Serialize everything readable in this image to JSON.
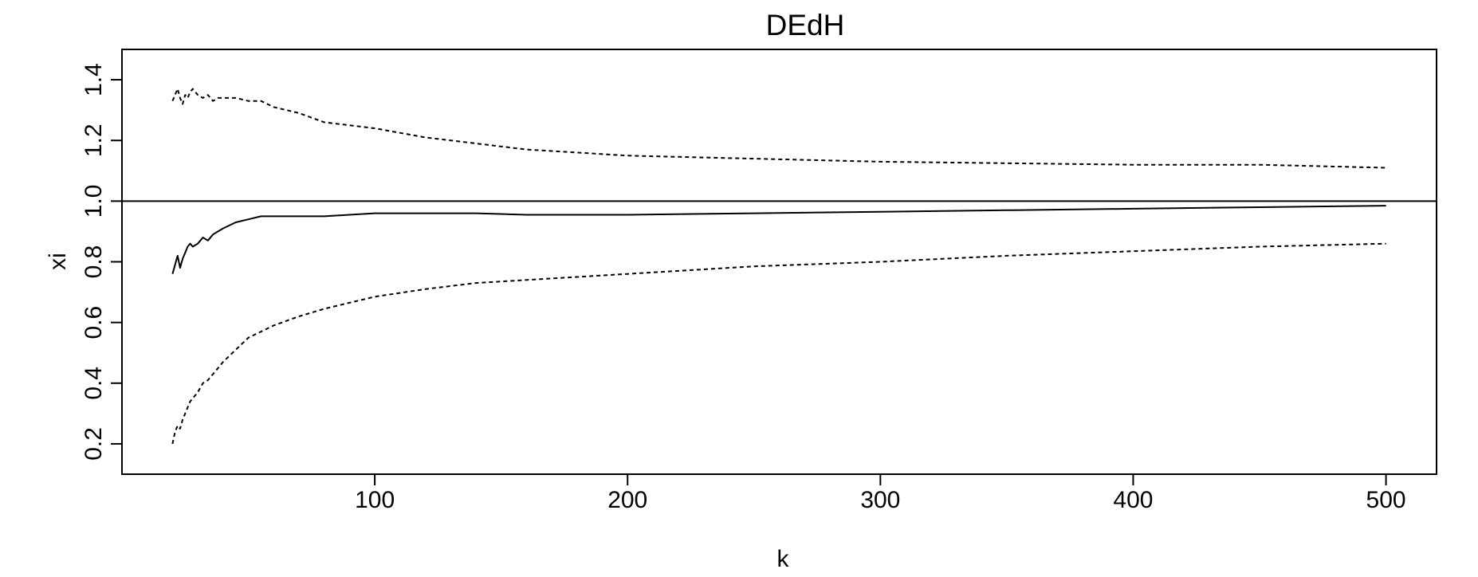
{
  "chart_data": {
    "type": "line",
    "title": "DEdH",
    "xlabel": "k",
    "ylabel": "xi",
    "xlim": [
      0,
      520
    ],
    "ylim": [
      0.1,
      1.5
    ],
    "x_ticks": [
      100,
      200,
      300,
      400,
      500
    ],
    "y_ticks": [
      0.2,
      0.4,
      0.6,
      0.8,
      1.0,
      1.2,
      1.4
    ],
    "x_tick_labels": [
      "100",
      "200",
      "300",
      "400",
      "500"
    ],
    "y_tick_labels": [
      "0.2",
      "0.4",
      "0.6",
      "0.8",
      "1.0",
      "1.2",
      "1.4"
    ],
    "grid": false,
    "reference_line": {
      "orientation": "horizontal",
      "y": 1.0,
      "style": "solid"
    },
    "series": [
      {
        "style": "dashed",
        "role": "upper-bound",
        "x": [
          20,
          21,
          22,
          23,
          24,
          25,
          26,
          27,
          28,
          30,
          32,
          34,
          36,
          38,
          40,
          45,
          50,
          55,
          60,
          70,
          80,
          90,
          100,
          120,
          140,
          160,
          180,
          200,
          250,
          300,
          350,
          400,
          450,
          500
        ],
        "y": [
          1.33,
          1.35,
          1.37,
          1.34,
          1.32,
          1.35,
          1.34,
          1.36,
          1.37,
          1.35,
          1.34,
          1.35,
          1.33,
          1.34,
          1.34,
          1.34,
          1.33,
          1.33,
          1.31,
          1.29,
          1.26,
          1.25,
          1.24,
          1.21,
          1.19,
          1.17,
          1.16,
          1.15,
          1.14,
          1.13,
          1.125,
          1.12,
          1.12,
          1.11
        ]
      },
      {
        "style": "solid",
        "role": "estimate",
        "x": [
          20,
          21,
          22,
          23,
          24,
          25,
          26,
          27,
          28,
          30,
          32,
          34,
          36,
          38,
          40,
          45,
          50,
          55,
          60,
          70,
          80,
          90,
          100,
          120,
          140,
          160,
          180,
          200,
          250,
          300,
          350,
          400,
          450,
          500
        ],
        "y": [
          0.76,
          0.79,
          0.82,
          0.78,
          0.81,
          0.83,
          0.85,
          0.86,
          0.85,
          0.86,
          0.88,
          0.87,
          0.89,
          0.9,
          0.91,
          0.93,
          0.94,
          0.95,
          0.95,
          0.95,
          0.95,
          0.955,
          0.96,
          0.96,
          0.96,
          0.955,
          0.955,
          0.955,
          0.96,
          0.965,
          0.97,
          0.975,
          0.98,
          0.985
        ]
      },
      {
        "style": "dashed",
        "role": "lower-bound",
        "x": [
          20,
          21,
          22,
          23,
          24,
          25,
          26,
          27,
          28,
          30,
          32,
          34,
          36,
          38,
          40,
          45,
          50,
          55,
          60,
          70,
          80,
          90,
          100,
          120,
          140,
          160,
          180,
          200,
          250,
          300,
          350,
          400,
          450,
          500
        ],
        "y": [
          0.2,
          0.24,
          0.26,
          0.25,
          0.28,
          0.3,
          0.32,
          0.34,
          0.35,
          0.37,
          0.4,
          0.41,
          0.43,
          0.45,
          0.47,
          0.51,
          0.55,
          0.57,
          0.59,
          0.62,
          0.645,
          0.665,
          0.685,
          0.71,
          0.73,
          0.74,
          0.75,
          0.76,
          0.785,
          0.8,
          0.82,
          0.835,
          0.85,
          0.86
        ]
      }
    ]
  }
}
